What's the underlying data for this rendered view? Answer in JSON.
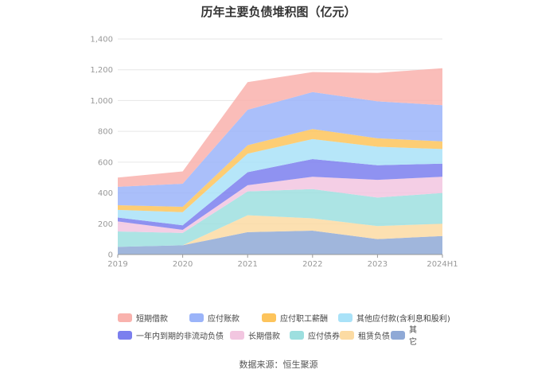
{
  "chart_data": {
    "type": "area",
    "stacked": true,
    "title": "历年主要负债堆积图（亿元）",
    "x": [
      "2019",
      "2020",
      "2021",
      "2022",
      "2023",
      "2024H1"
    ],
    "ylim": [
      0,
      1400
    ],
    "yticks": [
      0,
      200,
      400,
      600,
      800,
      1000,
      1200,
      1400
    ],
    "ytick_labels": [
      "0",
      "200",
      "400",
      "600",
      "800",
      "1,000",
      "1,200",
      "1,400"
    ],
    "grid": true,
    "legend_position": "bottom",
    "series": [
      {
        "name": "其它",
        "color": "#8fa9d6",
        "values": [
          50,
          60,
          145,
          155,
          100,
          120
        ]
      },
      {
        "name": "租赁负债",
        "color": "#fcdba3",
        "values": [
          0,
          0,
          110,
          80,
          85,
          80
        ]
      },
      {
        "name": "应付债券",
        "color": "#9ddfdf",
        "values": [
          100,
          80,
          155,
          190,
          185,
          200
        ]
      },
      {
        "name": "长期借款",
        "color": "#f2c6e0",
        "values": [
          65,
          20,
          40,
          80,
          115,
          105
        ]
      },
      {
        "name": "一年内到期的非流动负债",
        "color": "#7b7fee",
        "values": [
          25,
          30,
          85,
          115,
          95,
          85
        ]
      },
      {
        "name": "其他应付款(含利息和股利)",
        "color": "#a9e2f8",
        "values": [
          50,
          85,
          120,
          130,
          120,
          95
        ]
      },
      {
        "name": "应付职工薪酬",
        "color": "#fdc45c",
        "values": [
          30,
          35,
          55,
          65,
          55,
          50
        ]
      },
      {
        "name": "应付账款",
        "color": "#9bb4f9",
        "values": [
          120,
          150,
          230,
          240,
          240,
          235
        ]
      },
      {
        "name": "短期借款",
        "color": "#f9b2ad",
        "values": [
          60,
          80,
          180,
          130,
          185,
          240
        ]
      }
    ],
    "legend_rows": [
      [
        "短期借款",
        "应付账款",
        "应付职工薪酬",
        "其他应付款(含利息和股利)"
      ],
      [
        "一年内到期的非流动负债",
        "长期借款",
        "应付债券",
        "租赁负债",
        "其它"
      ]
    ]
  },
  "source": "数据来源：恒生聚源"
}
